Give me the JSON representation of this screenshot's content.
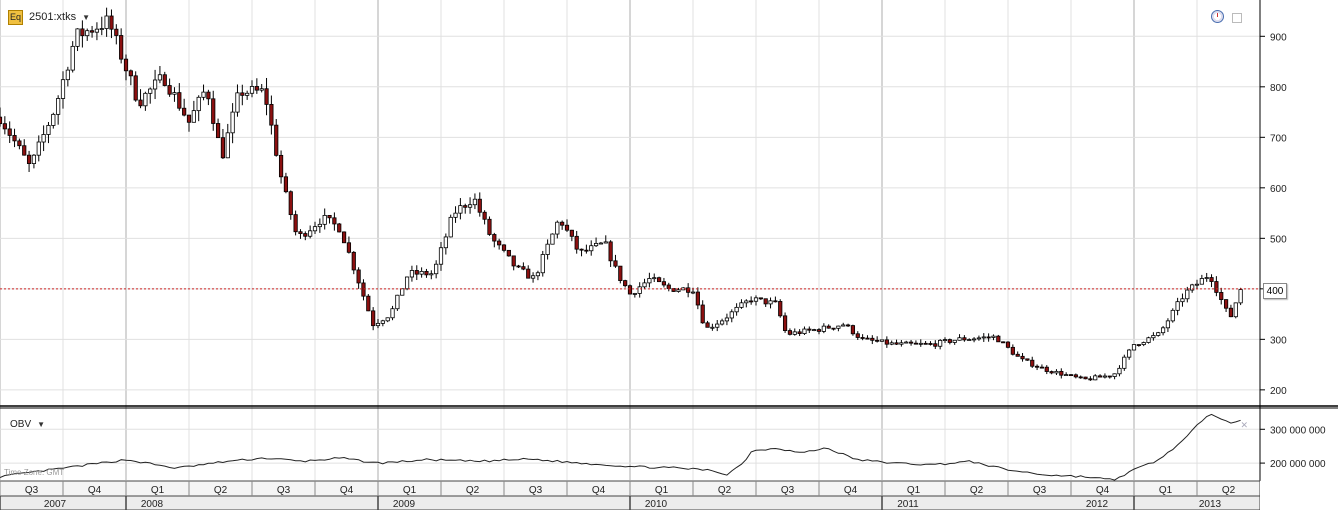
{
  "header": {
    "symbol": "2501:xtks",
    "icon_label": "Eq"
  },
  "indicator": {
    "name": "OBV",
    "close_glyph": "✕"
  },
  "timezone_label": "Time Zone: GMT",
  "price_tag": "400",
  "colors": {
    "up": "#ffffff",
    "down": "#8b1010",
    "wick": "#000000",
    "line": "#222222",
    "grid": "#e0e0e0",
    "ref_line": "#cc2222"
  },
  "chart_data": [
    {
      "type": "candlestick",
      "title": "",
      "frequency": "weekly",
      "ylim": [
        170,
        960
      ],
      "y_ticks": [
        200,
        300,
        400,
        500,
        600,
        700,
        800,
        900
      ],
      "reference_line": 400,
      "anchors": [
        [
          2007.5,
          740
        ],
        [
          2007.62,
          640
        ],
        [
          2007.72,
          760
        ],
        [
          2007.8,
          900
        ],
        [
          2007.93,
          930
        ],
        [
          2008.05,
          770
        ],
        [
          2008.15,
          820
        ],
        [
          2008.25,
          730
        ],
        [
          2008.32,
          800
        ],
        [
          2008.38,
          660
        ],
        [
          2008.45,
          790
        ],
        [
          2008.55,
          790
        ],
        [
          2008.62,
          610
        ],
        [
          2008.68,
          500
        ],
        [
          2008.78,
          540
        ],
        [
          2008.85,
          520
        ],
        [
          2008.92,
          420
        ],
        [
          2008.98,
          330
        ],
        [
          2009.05,
          350
        ],
        [
          2009.12,
          430
        ],
        [
          2009.22,
          430
        ],
        [
          2009.3,
          550
        ],
        [
          2009.38,
          580
        ],
        [
          2009.45,
          500
        ],
        [
          2009.55,
          440
        ],
        [
          2009.62,
          420
        ],
        [
          2009.72,
          540
        ],
        [
          2009.8,
          470
        ],
        [
          2009.9,
          490
        ],
        [
          2009.95,
          430
        ],
        [
          2010.0,
          390
        ],
        [
          2010.08,
          420
        ],
        [
          2010.15,
          400
        ],
        [
          2010.25,
          400
        ],
        [
          2010.3,
          320
        ],
        [
          2010.37,
          340
        ],
        [
          2010.48,
          380
        ],
        [
          2010.58,
          370
        ],
        [
          2010.62,
          310
        ],
        [
          2010.75,
          320
        ],
        [
          2010.85,
          330
        ],
        [
          2010.92,
          300
        ],
        [
          2011.05,
          290
        ],
        [
          2011.2,
          290
        ],
        [
          2011.3,
          300
        ],
        [
          2011.45,
          305
        ],
        [
          2011.55,
          260
        ],
        [
          2011.65,
          240
        ],
        [
          2011.8,
          220
        ],
        [
          2011.92,
          230
        ],
        [
          2012.0,
          290
        ],
        [
          2012.1,
          310
        ],
        [
          2012.2,
          390
        ],
        [
          2012.3,
          430
        ],
        [
          2012.38,
          340
        ],
        [
          2012.43,
          410
        ]
      ]
    },
    {
      "type": "line",
      "series": [
        {
          "name": "OBV"
        }
      ],
      "ylim": [
        150000000,
        360000000
      ],
      "y_ticks": [
        200000000,
        300000000
      ],
      "y_tick_labels": [
        "200 000 000",
        "300 000 000"
      ],
      "anchors": [
        [
          2007.5,
          160
        ],
        [
          2007.7,
          180
        ],
        [
          2007.9,
          200
        ],
        [
          2008.0,
          210
        ],
        [
          2008.2,
          185
        ],
        [
          2008.4,
          205
        ],
        [
          2008.55,
          215
        ],
        [
          2008.7,
          205
        ],
        [
          2008.85,
          215
        ],
        [
          2009.0,
          200
        ],
        [
          2009.2,
          210
        ],
        [
          2009.4,
          205
        ],
        [
          2009.6,
          212
        ],
        [
          2009.8,
          200
        ],
        [
          2010.0,
          190
        ],
        [
          2010.2,
          185
        ],
        [
          2010.33,
          178
        ],
        [
          2010.38,
          165
        ],
        [
          2010.45,
          200
        ],
        [
          2010.48,
          235
        ],
        [
          2010.58,
          245
        ],
        [
          2010.68,
          230
        ],
        [
          2010.78,
          245
        ],
        [
          2010.9,
          210
        ],
        [
          2011.05,
          200
        ],
        [
          2011.2,
          195
        ],
        [
          2011.35,
          205
        ],
        [
          2011.5,
          180
        ],
        [
          2011.65,
          165
        ],
        [
          2011.8,
          160
        ],
        [
          2011.92,
          150
        ],
        [
          2012.0,
          180
        ],
        [
          2012.1,
          210
        ],
        [
          2012.2,
          270
        ],
        [
          2012.3,
          350
        ],
        [
          2012.38,
          320
        ],
        [
          2012.43,
          325
        ]
      ]
    }
  ],
  "x_axis": {
    "quarters": [
      {
        "label": "Q3",
        "start": 2007.5
      },
      {
        "label": "Q4",
        "start": 2007.75
      },
      {
        "label": "Q1",
        "start": 2008.0
      },
      {
        "label": "Q2",
        "start": 2008.25
      },
      {
        "label": "Q3",
        "start": 2008.5
      },
      {
        "label": "Q4",
        "start": 2008.75
      },
      {
        "label": "Q1",
        "start": 2009.0
      },
      {
        "label": "Q2",
        "start": 2009.25
      },
      {
        "label": "Q3",
        "start": 2009.5
      },
      {
        "label": "Q4",
        "start": 2009.75
      },
      {
        "label": "Q1",
        "start": 2010.0
      },
      {
        "label": "Q2",
        "start": 2010.25
      },
      {
        "label": "Q3",
        "start": 2010.5
      },
      {
        "label": "Q4",
        "start": 2010.75
      },
      {
        "label": "Q1",
        "start": 2011.0
      },
      {
        "label": "Q2",
        "start": 2011.25
      },
      {
        "label": "Q3",
        "start": 2011.5
      },
      {
        "label": "Q4",
        "start": 2011.75
      },
      {
        "label": "Q1",
        "start": 2012.0
      },
      {
        "label": "Q2",
        "start": 2012.25
      }
    ],
    "years": [
      {
        "label": "2007",
        "start": 2007.5
      },
      {
        "label": "2008",
        "start": 2008.0
      },
      {
        "label": "2009",
        "start": 2009.0
      },
      {
        "label": "2010",
        "start": 2010.0
      },
      {
        "label": "2011",
        "start": 2011.0
      },
      {
        "label": "2012",
        "start": 2012.0
      },
      {
        "label": "2013",
        "start": 2013.0
      }
    ],
    "year_labels_note_offset": 1,
    "range": [
      2007.5,
      2012.5
    ]
  }
}
